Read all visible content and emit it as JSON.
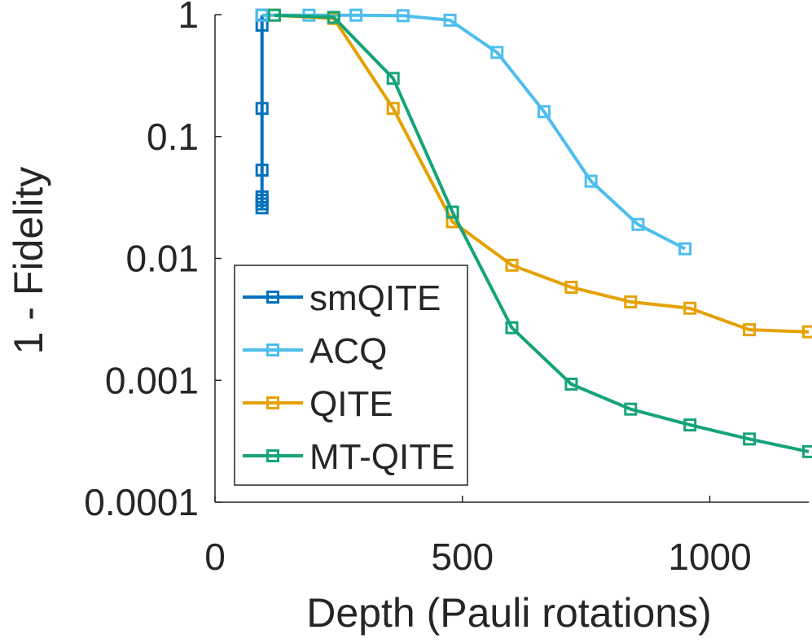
{
  "chart_data": {
    "type": "line",
    "xlabel": "Depth (Pauli rotations)",
    "ylabel": "1 - Fidelity",
    "xlim": [
      0,
      1200
    ],
    "ylim": [
      0.0001,
      1
    ],
    "yscale": "log",
    "grid": false,
    "legend_position": "bottom-left",
    "x_ticks": [
      {
        "value": 0,
        "label": "0"
      },
      {
        "value": 500,
        "label": "500"
      },
      {
        "value": 1000,
        "label": "1000"
      }
    ],
    "y_ticks": [
      {
        "value": 1,
        "label": "1"
      },
      {
        "value": 0.1,
        "label": "0.1"
      },
      {
        "value": 0.01,
        "label": "0.01"
      },
      {
        "value": 0.001,
        "label": "0.001"
      },
      {
        "value": 0.0001,
        "label": "0.0001"
      }
    ],
    "series": [
      {
        "name": "smQITE",
        "color": "#0072bd",
        "points": [
          {
            "x": 95,
            "y": 0.026
          },
          {
            "x": 95,
            "y": 0.028
          },
          {
            "x": 95,
            "y": 0.03
          },
          {
            "x": 95,
            "y": 0.032
          },
          {
            "x": 95,
            "y": 0.053
          },
          {
            "x": 95,
            "y": 0.17
          },
          {
            "x": 95,
            "y": 0.82
          },
          {
            "x": 95,
            "y": 0.99
          }
        ]
      },
      {
        "name": "ACQ",
        "color": "#4dbeee",
        "points": [
          {
            "x": 95,
            "y": 0.99
          },
          {
            "x": 190,
            "y": 0.99
          },
          {
            "x": 285,
            "y": 0.99
          },
          {
            "x": 380,
            "y": 0.98
          },
          {
            "x": 475,
            "y": 0.9
          },
          {
            "x": 570,
            "y": 0.49
          },
          {
            "x": 665,
            "y": 0.16
          },
          {
            "x": 760,
            "y": 0.043
          },
          {
            "x": 855,
            "y": 0.019
          },
          {
            "x": 950,
            "y": 0.012
          }
        ]
      },
      {
        "name": "QITE",
        "color": "#e5a100",
        "points": [
          {
            "x": 120,
            "y": 0.99
          },
          {
            "x": 240,
            "y": 0.93
          },
          {
            "x": 360,
            "y": 0.17
          },
          {
            "x": 480,
            "y": 0.02
          },
          {
            "x": 600,
            "y": 0.0088
          },
          {
            "x": 720,
            "y": 0.0058
          },
          {
            "x": 840,
            "y": 0.0044
          },
          {
            "x": 960,
            "y": 0.0039
          },
          {
            "x": 1080,
            "y": 0.0026
          },
          {
            "x": 1200,
            "y": 0.0025
          }
        ]
      },
      {
        "name": "MT-QITE",
        "color": "#15a37a",
        "points": [
          {
            "x": 120,
            "y": 0.99
          },
          {
            "x": 240,
            "y": 0.95
          },
          {
            "x": 360,
            "y": 0.3
          },
          {
            "x": 480,
            "y": 0.024
          },
          {
            "x": 600,
            "y": 0.0027
          },
          {
            "x": 720,
            "y": 0.00093
          },
          {
            "x": 840,
            "y": 0.00058
          },
          {
            "x": 960,
            "y": 0.00043
          },
          {
            "x": 1080,
            "y": 0.00033
          },
          {
            "x": 1200,
            "y": 0.00026
          }
        ]
      }
    ]
  }
}
